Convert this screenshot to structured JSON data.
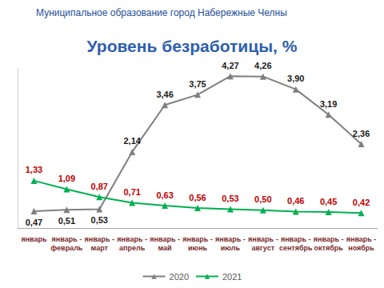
{
  "header": "Муниципальное образование город Набережные Челны",
  "chart_data": {
    "type": "line",
    "title": "Уровень безработицы, %",
    "categories": [
      "январь",
      "январь - февраль",
      "январь - март",
      "январь - апрель",
      "январь - май",
      "январь - июнь",
      "январь - июль",
      "январь - август",
      "январь - сентябрь",
      "январь - октябрь",
      "январь - ноябрь"
    ],
    "series": [
      {
        "name": "2020",
        "color": "#7f7f7f",
        "marker": "triangle",
        "values": [
          0.47,
          0.51,
          0.53,
          2.14,
          3.46,
          3.75,
          4.27,
          4.26,
          3.9,
          3.19,
          2.36
        ],
        "value_labels": [
          "0,47",
          "0,51",
          "0,53",
          "2,14",
          "3,46",
          "3,75",
          "4,27",
          "4,26",
          "3,90",
          "3,19",
          "2,36"
        ]
      },
      {
        "name": "2021",
        "color": "#00b050",
        "marker": "triangle",
        "values": [
          1.33,
          1.09,
          0.87,
          0.71,
          0.63,
          0.56,
          0.53,
          0.5,
          0.46,
          0.45,
          0.42
        ],
        "value_labels": [
          "1,33",
          "1,09",
          "0,87",
          "0,71",
          "0,63",
          "0,56",
          "0,53",
          "0,50",
          "0,46",
          "0,45",
          "0,42"
        ]
      }
    ],
    "ylim": [
      0,
      4.5
    ],
    "tick_labels": "x",
    "grid": false,
    "legend": "bottom",
    "data_labels": true
  }
}
